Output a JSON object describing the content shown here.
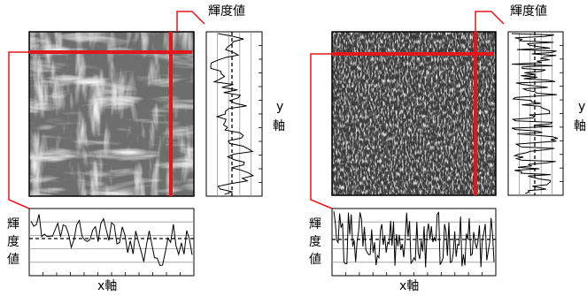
{
  "colors": {
    "accent": "#e5161b",
    "line": "#000000",
    "grid": "#9a9a9a"
  },
  "panels": [
    {
      "image_texture": "fibrous-mesh",
      "brightness_label": "輝度値",
      "y_axis_label": "y軸",
      "x_axis_label": "x軸",
      "x_brightness_label_chars": [
        "輝",
        "度",
        "値"
      ],
      "y_axis_label_chars": [
        "y",
        "軸"
      ]
    },
    {
      "image_texture": "noise-speckle",
      "brightness_label": "輝度値",
      "y_axis_label": "y軸",
      "x_axis_label": "x軸",
      "x_brightness_label_chars": [
        "輝",
        "度",
        "値"
      ],
      "y_axis_label_chars": [
        "y",
        "軸"
      ]
    }
  ]
}
